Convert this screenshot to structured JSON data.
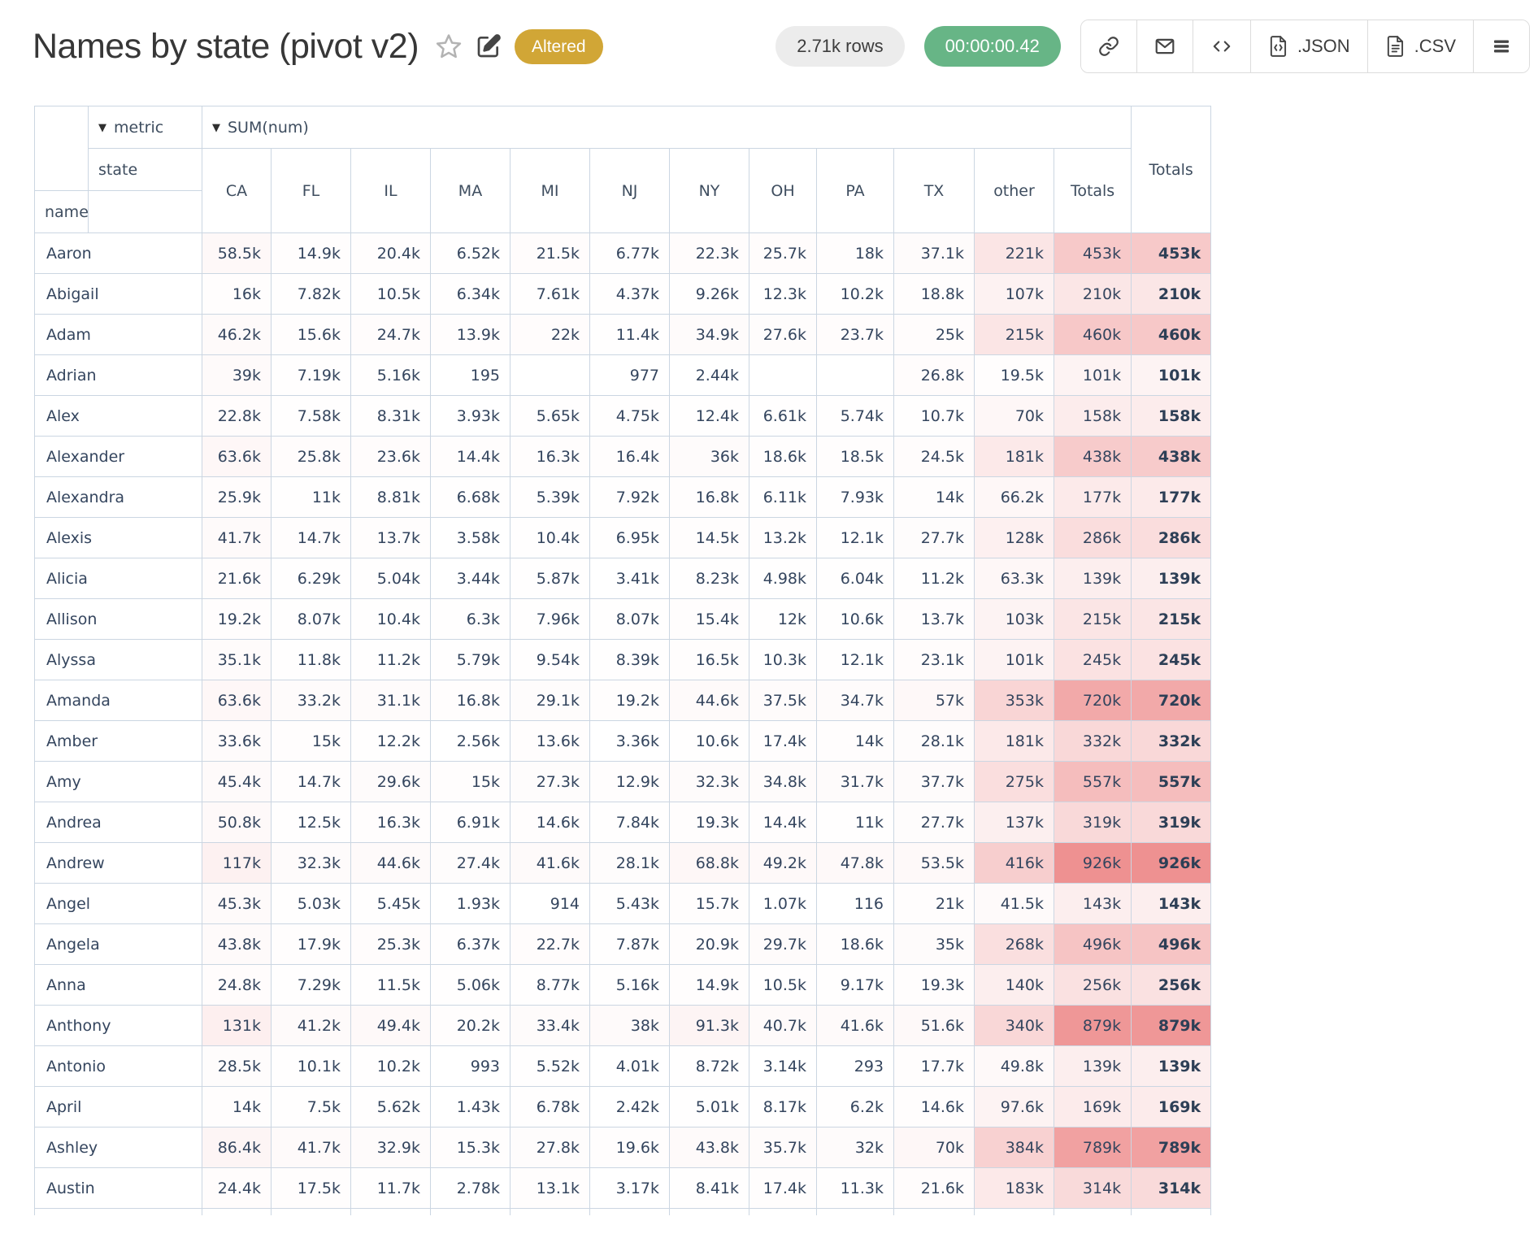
{
  "page": {
    "title": "Names by state (pivot v2)",
    "status_badge": "Altered",
    "rows_count": "2.71k rows",
    "elapsed_time": "00:00:00.42",
    "export_json_label": ".JSON",
    "export_csv_label": ".CSV"
  },
  "colors": {
    "status_badge_gold": "#d1a636",
    "timer_green": "#67b586",
    "heatmap_max_pink": "#ee9191",
    "table_border": "#cbd6e2",
    "cell_text": "#34455e"
  },
  "pivot": {
    "metric_axis_label": "metric",
    "metric_value": "SUM(num)",
    "col_axis_label": "state",
    "row_axis_label": "name",
    "columns": [
      "CA",
      "FL",
      "IL",
      "MA",
      "MI",
      "NJ",
      "NY",
      "OH",
      "PA",
      "TX",
      "other",
      "Totals"
    ],
    "grand_total_label": "Totals",
    "heat_max_value": 926000,
    "rows": [
      {
        "name": "Aaron",
        "values": [
          "58.5k",
          "14.9k",
          "20.4k",
          "6.52k",
          "21.5k",
          "6.77k",
          "22.3k",
          "25.7k",
          "18k",
          "37.1k",
          "221k",
          "453k"
        ],
        "total": "453k"
      },
      {
        "name": "Abigail",
        "values": [
          "16k",
          "7.82k",
          "10.5k",
          "6.34k",
          "7.61k",
          "4.37k",
          "9.26k",
          "12.3k",
          "10.2k",
          "18.8k",
          "107k",
          "210k"
        ],
        "total": "210k"
      },
      {
        "name": "Adam",
        "values": [
          "46.2k",
          "15.6k",
          "24.7k",
          "13.9k",
          "22k",
          "11.4k",
          "34.9k",
          "27.6k",
          "23.7k",
          "25k",
          "215k",
          "460k"
        ],
        "total": "460k"
      },
      {
        "name": "Adrian",
        "values": [
          "39k",
          "7.19k",
          "5.16k",
          "195",
          "",
          "977",
          "2.44k",
          "",
          "",
          "26.8k",
          "19.5k",
          "101k"
        ],
        "total": "101k"
      },
      {
        "name": "Alex",
        "values": [
          "22.8k",
          "7.58k",
          "8.31k",
          "3.93k",
          "5.65k",
          "4.75k",
          "12.4k",
          "6.61k",
          "5.74k",
          "10.7k",
          "70k",
          "158k"
        ],
        "total": "158k"
      },
      {
        "name": "Alexander",
        "values": [
          "63.6k",
          "25.8k",
          "23.6k",
          "14.4k",
          "16.3k",
          "16.4k",
          "36k",
          "18.6k",
          "18.5k",
          "24.5k",
          "181k",
          "438k"
        ],
        "total": "438k"
      },
      {
        "name": "Alexandra",
        "values": [
          "25.9k",
          "11k",
          "8.81k",
          "6.68k",
          "5.39k",
          "7.92k",
          "16.8k",
          "6.11k",
          "7.93k",
          "14k",
          "66.2k",
          "177k"
        ],
        "total": "177k"
      },
      {
        "name": "Alexis",
        "values": [
          "41.7k",
          "14.7k",
          "13.7k",
          "3.58k",
          "10.4k",
          "6.95k",
          "14.5k",
          "13.2k",
          "12.1k",
          "27.7k",
          "128k",
          "286k"
        ],
        "total": "286k"
      },
      {
        "name": "Alicia",
        "values": [
          "21.6k",
          "6.29k",
          "5.04k",
          "3.44k",
          "5.87k",
          "3.41k",
          "8.23k",
          "4.98k",
          "6.04k",
          "11.2k",
          "63.3k",
          "139k"
        ],
        "total": "139k"
      },
      {
        "name": "Allison",
        "values": [
          "19.2k",
          "8.07k",
          "10.4k",
          "6.3k",
          "7.96k",
          "8.07k",
          "15.4k",
          "12k",
          "10.6k",
          "13.7k",
          "103k",
          "215k"
        ],
        "total": "215k"
      },
      {
        "name": "Alyssa",
        "values": [
          "35.1k",
          "11.8k",
          "11.2k",
          "5.79k",
          "9.54k",
          "8.39k",
          "16.5k",
          "10.3k",
          "12.1k",
          "23.1k",
          "101k",
          "245k"
        ],
        "total": "245k"
      },
      {
        "name": "Amanda",
        "values": [
          "63.6k",
          "33.2k",
          "31.1k",
          "16.8k",
          "29.1k",
          "19.2k",
          "44.6k",
          "37.5k",
          "34.7k",
          "57k",
          "353k",
          "720k"
        ],
        "total": "720k"
      },
      {
        "name": "Amber",
        "values": [
          "33.6k",
          "15k",
          "12.2k",
          "2.56k",
          "13.6k",
          "3.36k",
          "10.6k",
          "17.4k",
          "14k",
          "28.1k",
          "181k",
          "332k"
        ],
        "total": "332k"
      },
      {
        "name": "Amy",
        "values": [
          "45.4k",
          "14.7k",
          "29.6k",
          "15k",
          "27.3k",
          "12.9k",
          "32.3k",
          "34.8k",
          "31.7k",
          "37.7k",
          "275k",
          "557k"
        ],
        "total": "557k"
      },
      {
        "name": "Andrea",
        "values": [
          "50.8k",
          "12.5k",
          "16.3k",
          "6.91k",
          "14.6k",
          "7.84k",
          "19.3k",
          "14.4k",
          "11k",
          "27.7k",
          "137k",
          "319k"
        ],
        "total": "319k"
      },
      {
        "name": "Andrew",
        "values": [
          "117k",
          "32.3k",
          "44.6k",
          "27.4k",
          "41.6k",
          "28.1k",
          "68.8k",
          "49.2k",
          "47.8k",
          "53.5k",
          "416k",
          "926k"
        ],
        "total": "926k"
      },
      {
        "name": "Angel",
        "values": [
          "45.3k",
          "5.03k",
          "5.45k",
          "1.93k",
          "914",
          "5.43k",
          "15.7k",
          "1.07k",
          "116",
          "21k",
          "41.5k",
          "143k"
        ],
        "total": "143k"
      },
      {
        "name": "Angela",
        "values": [
          "43.8k",
          "17.9k",
          "25.3k",
          "6.37k",
          "22.7k",
          "7.87k",
          "20.9k",
          "29.7k",
          "18.6k",
          "35k",
          "268k",
          "496k"
        ],
        "total": "496k"
      },
      {
        "name": "Anna",
        "values": [
          "24.8k",
          "7.29k",
          "11.5k",
          "5.06k",
          "8.77k",
          "5.16k",
          "14.9k",
          "10.5k",
          "9.17k",
          "19.3k",
          "140k",
          "256k"
        ],
        "total": "256k"
      },
      {
        "name": "Anthony",
        "values": [
          "131k",
          "41.2k",
          "49.4k",
          "20.2k",
          "33.4k",
          "38k",
          "91.3k",
          "40.7k",
          "41.6k",
          "51.6k",
          "340k",
          "879k"
        ],
        "total": "879k"
      },
      {
        "name": "Antonio",
        "values": [
          "28.5k",
          "10.1k",
          "10.2k",
          "993",
          "5.52k",
          "4.01k",
          "8.72k",
          "3.14k",
          "293",
          "17.7k",
          "49.8k",
          "139k"
        ],
        "total": "139k"
      },
      {
        "name": "April",
        "values": [
          "14k",
          "7.5k",
          "5.62k",
          "1.43k",
          "6.78k",
          "2.42k",
          "5.01k",
          "8.17k",
          "6.2k",
          "14.6k",
          "97.6k",
          "169k"
        ],
        "total": "169k"
      },
      {
        "name": "Ashley",
        "values": [
          "86.4k",
          "41.7k",
          "32.9k",
          "15.3k",
          "27.8k",
          "19.6k",
          "43.8k",
          "35.7k",
          "32k",
          "70k",
          "384k",
          "789k"
        ],
        "total": "789k"
      },
      {
        "name": "Austin",
        "values": [
          "24.4k",
          "17.5k",
          "11.7k",
          "2.78k",
          "13.1k",
          "3.17k",
          "8.41k",
          "17.4k",
          "11.3k",
          "21.6k",
          "183k",
          "314k"
        ],
        "total": "314k"
      }
    ]
  }
}
